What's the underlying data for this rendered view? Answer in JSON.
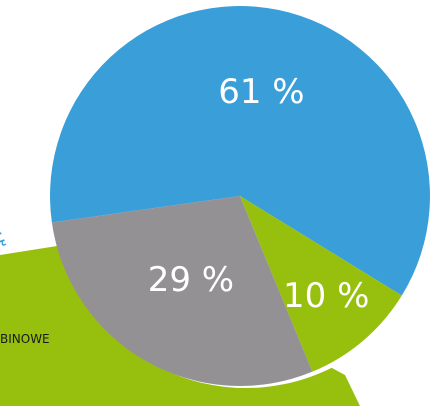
{
  "colors": {
    "blue": "#3a9fd9",
    "gray": "#949194",
    "green": "#97bf0d",
    "white": "#ffffff"
  },
  "background": {
    "curved_text_fragment": "ODĘ",
    "band_text_fragment": "BINOWE"
  },
  "chart_data": {
    "type": "pie",
    "title": "",
    "slices": [
      {
        "label": "61 %",
        "value": 61,
        "color": "#3a9fd9"
      },
      {
        "label": "10 %",
        "value": 10,
        "color": "#97bf0d"
      },
      {
        "label": "29 %",
        "value": 29,
        "color": "#949194"
      }
    ]
  }
}
